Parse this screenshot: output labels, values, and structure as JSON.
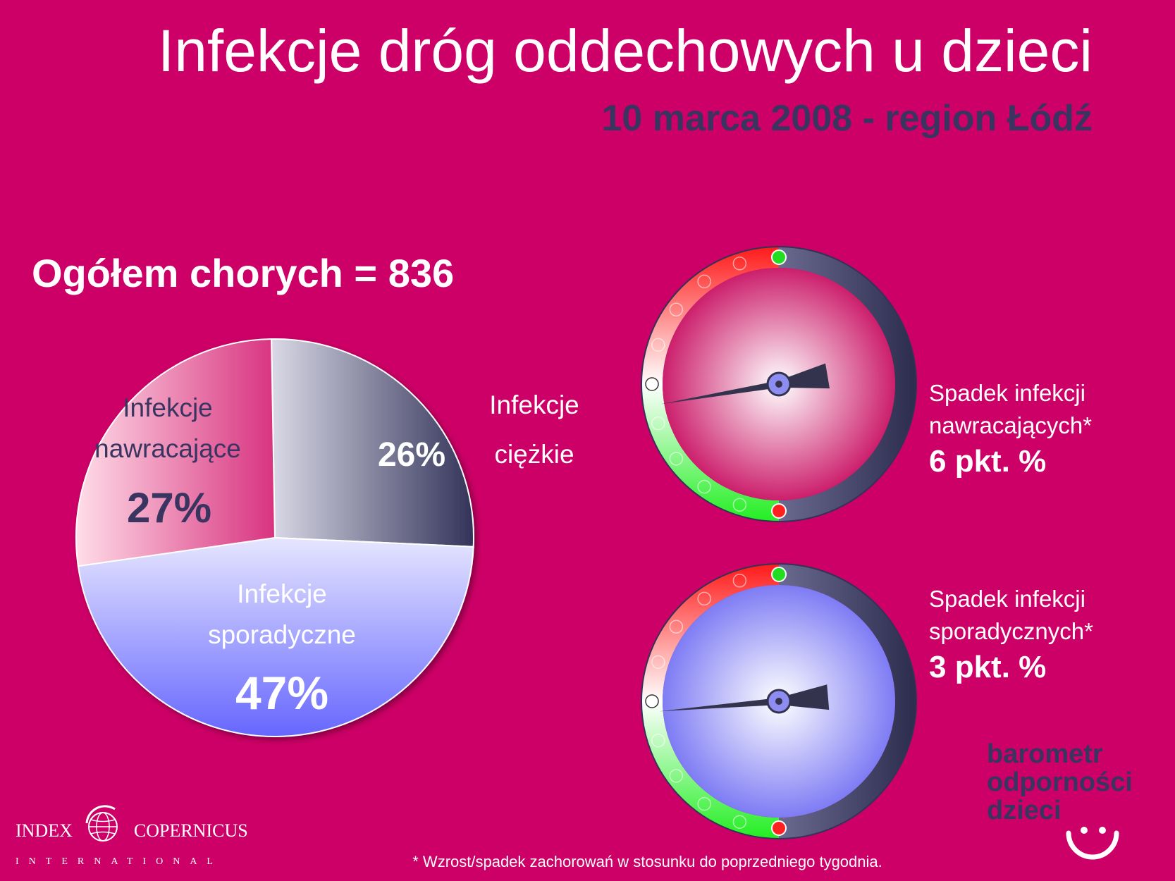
{
  "header": {
    "title": "Infekcje dróg oddechowych u dzieci",
    "subtitle": "10 marca 2008 - region Łódź"
  },
  "total_label": "Ogółem chorych = 836",
  "chart_data": [
    {
      "type": "pie",
      "categories": [
        "Infekcje ciężkie",
        "Infekcje sporadyczne",
        "Infekcje nawracające"
      ],
      "values": [
        26,
        47,
        27
      ],
      "value_labels": [
        "26%",
        "47%",
        "27%"
      ],
      "label_lines": [
        [
          "Infekcje",
          "ciężkie"
        ],
        [
          "Infekcje",
          "sporadyczne"
        ],
        [
          "Infekcje",
          "nawracające"
        ]
      ],
      "colors": [
        "#3a3a5e",
        "#8080ff",
        "#e0408a"
      ]
    },
    {
      "type": "gauge",
      "label_lines": [
        "Spadek infekcji",
        "nawracających*"
      ],
      "value_label": "6 pkt. %",
      "value": -6,
      "face_color": "#cc1f6c"
    },
    {
      "type": "gauge",
      "label_lines": [
        "Spadek infekcji",
        "sporadycznych*"
      ],
      "value_label": "3 pkt. %",
      "value": -3,
      "face_color": "#7e7cf4"
    }
  ],
  "footnote": "* Wzrost/spadek zachorowań w stosunku do poprzedniego tygodnia.",
  "brand": {
    "line1": "barometr",
    "line2": "odporności",
    "line3": "dzieci",
    "smiley": "smiley-icon"
  },
  "logo": {
    "name_left": "INDEX",
    "name_right": "COPERNICUS",
    "sub": "INTERNATIONAL",
    "icon": "globe-icon"
  },
  "colors": {
    "background": "#cc0066",
    "subtitle": "#3a3461",
    "gauge_red": "#ff1a1a",
    "gauge_green": "#22ee22"
  }
}
